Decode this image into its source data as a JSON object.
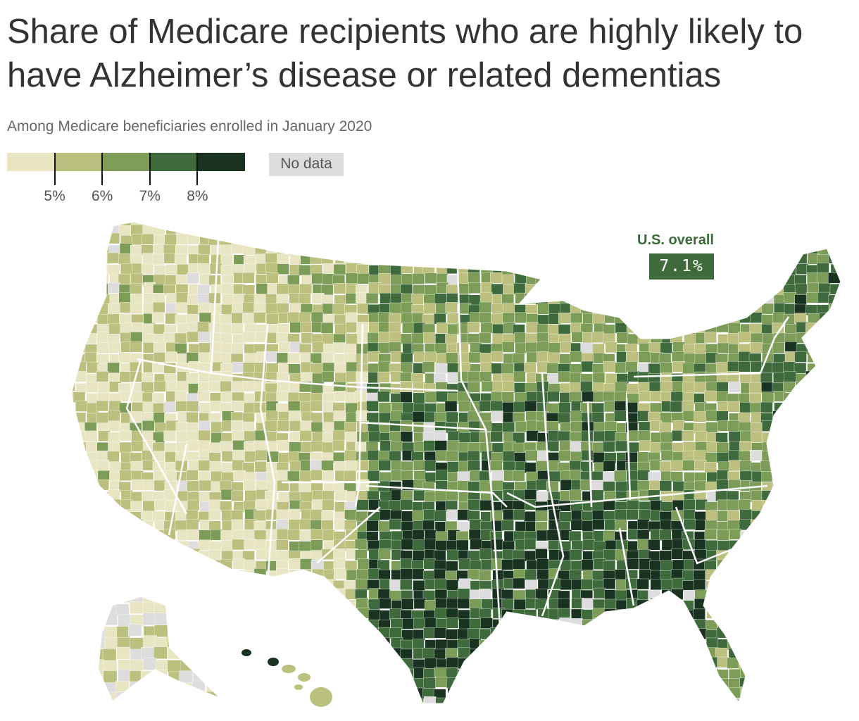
{
  "title": "Share of Medicare recipients who are highly likely to have Alzheimer’s disease or related dementias",
  "subtitle": "Among Medicare beneficiaries enrolled in January 2020",
  "legend": {
    "colors": [
      "#e8e5c3",
      "#bcc07e",
      "#7d9c58",
      "#3f6b3c",
      "#1a3320"
    ],
    "ticks": [
      "5%",
      "6%",
      "7%",
      "8%"
    ],
    "no_data_label": "No data",
    "no_data_color": "#dddddd"
  },
  "callout": {
    "label": "U.S. overall",
    "value": "7.1%"
  },
  "map": {
    "regions": [
      "contiguous-us",
      "alaska",
      "hawaii"
    ],
    "border_color": "#ffffff"
  }
}
